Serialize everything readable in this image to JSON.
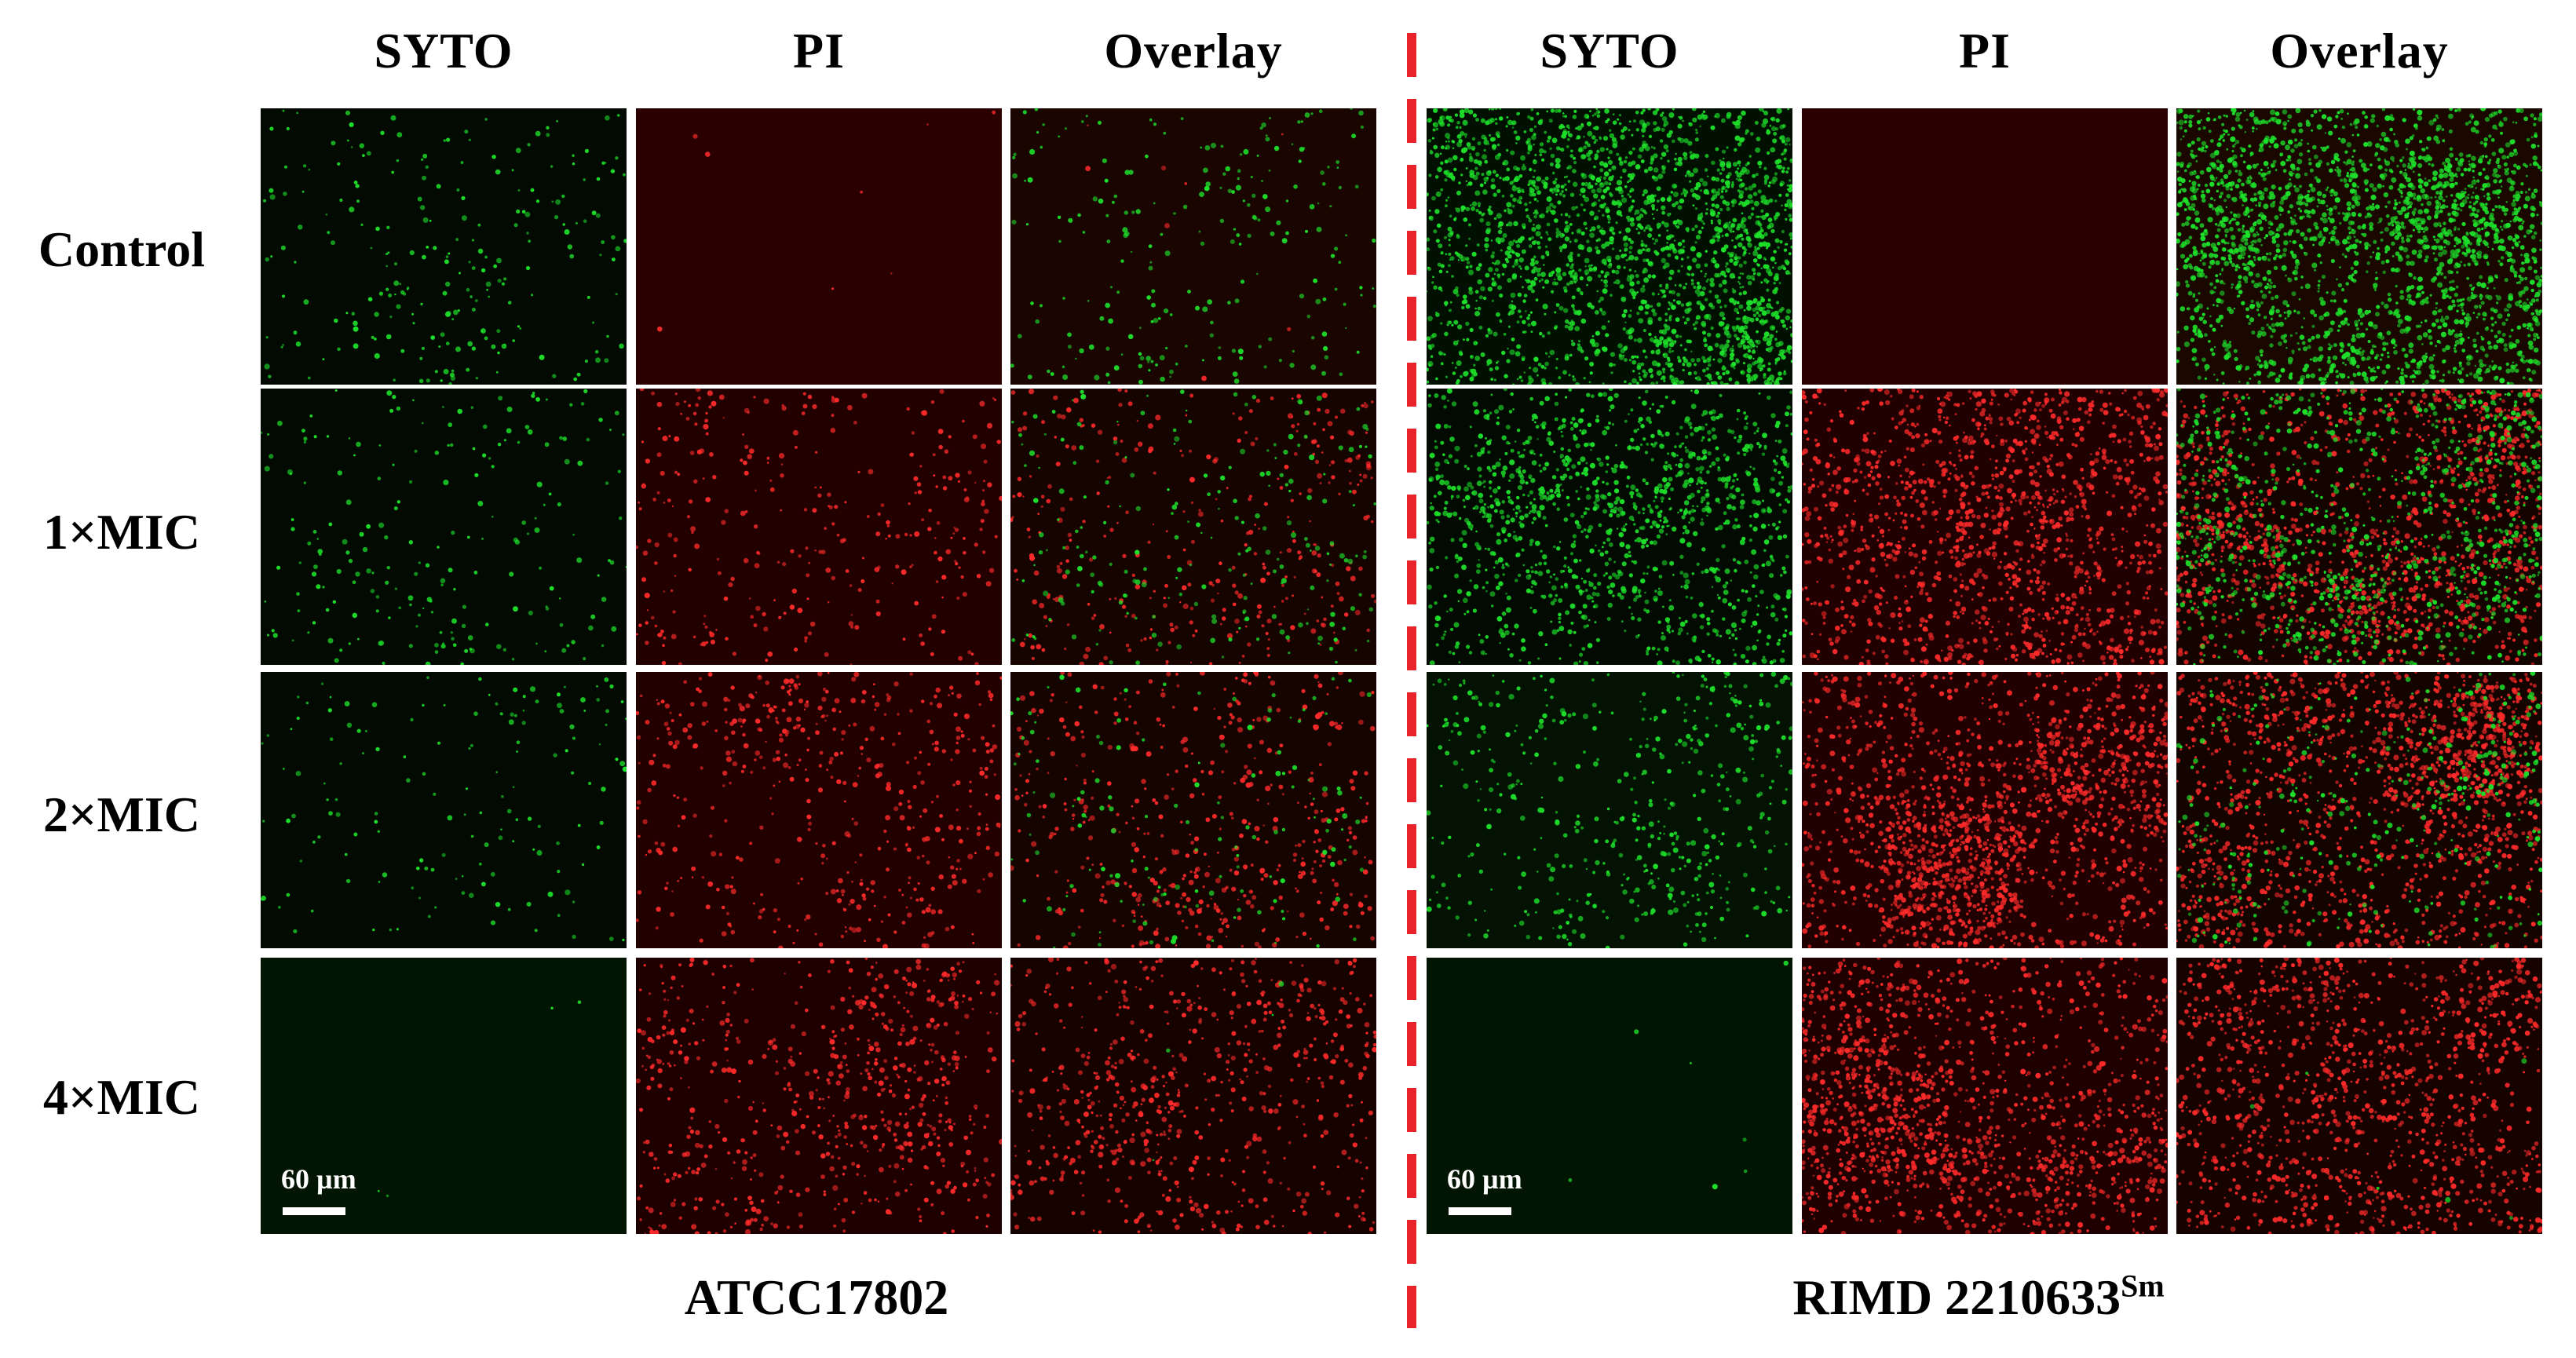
{
  "column_headers": [
    "SYTO",
    "PI",
    "Overlay",
    "SYTO",
    "PI",
    "Overlay"
  ],
  "row_labels": [
    "Control",
    "1×MIC",
    "2×MIC",
    "4×MIC"
  ],
  "strains": [
    {
      "label": "ATCC17802",
      "sup": ""
    },
    {
      "label": "RIMD 2210633",
      "sup": "Sm"
    }
  ],
  "scale_bar": {
    "label": "60 µm"
  },
  "colors": {
    "green_stain": "#1de02a",
    "red_stain": "#ff2a2a",
    "pi_background": "#2a0000",
    "syto_background": "#000800",
    "divider": "#e8232a"
  },
  "panels": [
    [
      {
        "strain": 0,
        "channel": "SYTO",
        "green": 260,
        "red": 0,
        "bg": "#020a02"
      },
      {
        "strain": 0,
        "channel": "PI",
        "green": 0,
        "red": 8,
        "bg": "#2a0000"
      },
      {
        "strain": 0,
        "channel": "Overlay",
        "green": 260,
        "red": 8,
        "bg": "#1a0500"
      },
      {
        "strain": 1,
        "channel": "SYTO",
        "green": 2600,
        "red": 0,
        "bg": "#021002"
      },
      {
        "strain": 1,
        "channel": "PI",
        "green": 0,
        "red": 0,
        "bg": "#2a0000"
      },
      {
        "strain": 1,
        "channel": "Overlay",
        "green": 2600,
        "red": 0,
        "bg": "#1a0800"
      }
    ],
    [
      {
        "strain": 0,
        "channel": "SYTO",
        "green": 230,
        "red": 0,
        "bg": "#020a02"
      },
      {
        "strain": 0,
        "channel": "PI",
        "green": 0,
        "red": 380,
        "bg": "#220000"
      },
      {
        "strain": 0,
        "channel": "Overlay",
        "green": 230,
        "red": 380,
        "bg": "#160400"
      },
      {
        "strain": 1,
        "channel": "SYTO",
        "green": 1300,
        "red": 0,
        "bg": "#020a02"
      },
      {
        "strain": 1,
        "channel": "PI",
        "green": 0,
        "red": 1500,
        "bg": "#200000"
      },
      {
        "strain": 1,
        "channel": "Overlay",
        "green": 1100,
        "red": 1500,
        "bg": "#140400"
      }
    ],
    [
      {
        "strain": 0,
        "channel": "SYTO",
        "green": 160,
        "red": 0,
        "bg": "#020a02"
      },
      {
        "strain": 0,
        "channel": "PI",
        "green": 0,
        "red": 520,
        "bg": "#220000"
      },
      {
        "strain": 0,
        "channel": "Overlay",
        "green": 150,
        "red": 520,
        "bg": "#160400"
      },
      {
        "strain": 1,
        "channel": "SYTO",
        "green": 520,
        "red": 0,
        "bg": "#031203"
      },
      {
        "strain": 1,
        "channel": "PI",
        "green": 0,
        "red": 1700,
        "bg": "#200000"
      },
      {
        "strain": 1,
        "channel": "Overlay",
        "green": 400,
        "red": 1700,
        "bg": "#140400"
      }
    ],
    [
      {
        "strain": 0,
        "channel": "SYTO",
        "green": 4,
        "red": 0,
        "bg": "#021402",
        "scalebar": true
      },
      {
        "strain": 0,
        "channel": "PI",
        "green": 0,
        "red": 700,
        "bg": "#1e0000"
      },
      {
        "strain": 0,
        "channel": "Overlay",
        "green": 4,
        "red": 700,
        "bg": "#160300"
      },
      {
        "strain": 1,
        "channel": "SYTO",
        "green": 8,
        "red": 0,
        "bg": "#021402",
        "scalebar": true
      },
      {
        "strain": 1,
        "channel": "PI",
        "green": 0,
        "red": 1500,
        "bg": "#1e0000"
      },
      {
        "strain": 1,
        "channel": "Overlay",
        "green": 6,
        "red": 1400,
        "bg": "#160300"
      }
    ]
  ]
}
